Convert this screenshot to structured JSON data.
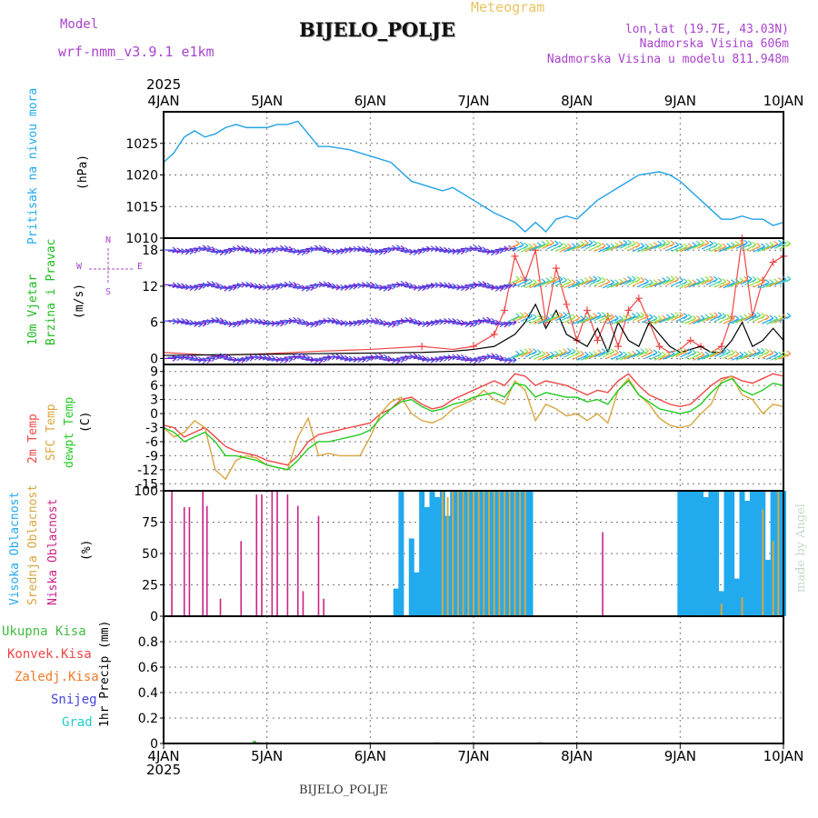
{
  "header": {
    "model_label": "Model",
    "model_name": "wrf-nmm_v3.9.1 e1km",
    "title": "BIJELO_POLJE",
    "subtitle": "Meteogram",
    "coords": "lon,lat (19.7E, 43.03N)",
    "elevation": "Nadmorska Visina 606m",
    "model_elevation": "Nadmorska Visina u modelu 811.948m"
  },
  "footer": {
    "station": "BIJELO_POLJE",
    "watermark": "made by Angel"
  },
  "colors": {
    "pressure": "#22a3e6",
    "t2m": "#f04646",
    "sfc": "#d8a640",
    "dewpt": "#22cc22",
    "purple": "#aa44cc",
    "magenta": "#cc2288",
    "cyan": "#22aaee",
    "orange": "#f07a28",
    "blue": "#4444dd",
    "teal": "#22cccc",
    "green": "#44bb44"
  },
  "chart_data": [
    {
      "type": "line",
      "panel": "pressure",
      "ylabel_lines": [
        "Pritisak na nivou mora",
        "(hPa)"
      ],
      "ylim": [
        1010,
        1030
      ],
      "yticks": [
        1010,
        1015,
        1020,
        1025
      ],
      "x_year": "2025",
      "x_ticks": [
        "4JAN",
        "5JAN",
        "6JAN",
        "7JAN",
        "8JAN",
        "9JAN",
        "10JAN"
      ],
      "series": [
        {
          "name": "Pritisak na nivou mora",
          "x": [
            0,
            0.1,
            0.2,
            0.3,
            0.4,
            0.5,
            0.6,
            0.7,
            0.8,
            0.9,
            1.0,
            1.1,
            1.2,
            1.3,
            1.5,
            1.6,
            1.8,
            2.0,
            2.2,
            2.4,
            2.6,
            2.7,
            2.8,
            3.0,
            3.2,
            3.4,
            3.5,
            3.6,
            3.7,
            3.8,
            3.9,
            4.0,
            4.2,
            4.4,
            4.6,
            4.8,
            4.9,
            5.0,
            5.2,
            5.4,
            5.5,
            5.6,
            5.7,
            5.8,
            5.9,
            6.0
          ],
          "y": [
            1022,
            1023.5,
            1026,
            1027,
            1026,
            1026.5,
            1027.5,
            1028,
            1027.5,
            1027.5,
            1027.5,
            1028,
            1028,
            1028.5,
            1024.5,
            1024.5,
            1024,
            1023,
            1022,
            1019,
            1018,
            1017.5,
            1018,
            1016,
            1014,
            1012.5,
            1011,
            1012.5,
            1011,
            1013,
            1013.5,
            1013,
            1016,
            1018,
            1020,
            1020.5,
            1020,
            1019,
            1016,
            1013,
            1013,
            1013.5,
            1013,
            1013,
            1012,
            1012.5
          ]
        }
      ]
    },
    {
      "type": "line",
      "panel": "wind",
      "ylabel_lines": [
        "10m Vjetar",
        "Brzina i Pravac",
        "(m/s)"
      ],
      "compass": [
        "N",
        "W",
        "E",
        "S"
      ],
      "ylim": [
        -1,
        20
      ],
      "yticks": [
        0,
        6,
        12,
        18
      ],
      "series": [
        {
          "name": "Brzina (speed)",
          "x": [
            0,
            0.5,
            1.0,
            1.5,
            2.0,
            2.5,
            2.8,
            3.0,
            3.2,
            3.4,
            3.5,
            3.6,
            3.7,
            3.8,
            3.9,
            4.0,
            4.1,
            4.2,
            4.3,
            4.4,
            4.5,
            4.6,
            4.7,
            4.8,
            4.9,
            5.0,
            5.1,
            5.2,
            5.3,
            5.4,
            5.5,
            5.6,
            5.7,
            5.8,
            5.9,
            6.0
          ],
          "y": [
            0.5,
            0.6,
            0.7,
            0.8,
            0.9,
            1.0,
            1.2,
            1.5,
            2,
            4,
            6,
            9,
            5,
            8,
            4,
            3,
            2,
            5,
            1,
            6,
            3,
            2,
            6,
            4,
            2,
            1,
            1.5,
            2,
            1,
            1,
            3,
            6,
            2,
            3,
            5,
            3
          ]
        },
        {
          "name": "Udari (gusts)",
          "x": [
            0,
            0.5,
            1.0,
            1.5,
            2.0,
            2.5,
            2.8,
            3.0,
            3.2,
            3.3,
            3.4,
            3.5,
            3.6,
            3.7,
            3.8,
            3.9,
            4.0,
            4.1,
            4.2,
            4.3,
            4.4,
            4.5,
            4.6,
            4.7,
            4.8,
            4.9,
            5.0,
            5.1,
            5.2,
            5.3,
            5.4,
            5.5,
            5.6,
            5.7,
            5.8,
            5.9,
            6.0
          ],
          "y": [
            1,
            0.5,
            0.8,
            1.2,
            1.5,
            2,
            1.5,
            2,
            4,
            8,
            17,
            13,
            18,
            6,
            15,
            9,
            3,
            8,
            3,
            7,
            2,
            8,
            10,
            6,
            2,
            1,
            1.5,
            3,
            2,
            1,
            2,
            7,
            20,
            7,
            13,
            16,
            17
          ]
        }
      ]
    },
    {
      "type": "line",
      "panel": "temperature",
      "ylabel_lines": [
        "2m Temp",
        "SFC Temp",
        "dewpt Temp",
        "(C)"
      ],
      "ylim": [
        -16.5,
        10.5
      ],
      "yticks": [
        -15,
        -12,
        -9,
        -6,
        -3,
        0,
        3,
        6,
        9
      ],
      "series": [
        {
          "name": "2m Temp",
          "x": [
            0,
            0.1,
            0.2,
            0.3,
            0.4,
            0.5,
            0.6,
            0.7,
            0.8,
            0.9,
            1.0,
            1.1,
            1.2,
            1.3,
            1.4,
            1.5,
            1.6,
            1.7,
            1.8,
            1.9,
            2.0,
            2.1,
            2.2,
            2.3,
            2.4,
            2.5,
            2.6,
            2.7,
            2.8,
            2.9,
            3.0,
            3.1,
            3.2,
            3.3,
            3.4,
            3.5,
            3.6,
            3.7,
            3.8,
            3.9,
            4.0,
            4.1,
            4.2,
            4.3,
            4.4,
            4.5,
            4.6,
            4.7,
            4.8,
            4.9,
            5.0,
            5.1,
            5.2,
            5.3,
            5.4,
            5.5,
            5.6,
            5.7,
            5.8,
            5.9,
            6.0
          ],
          "y": [
            -2.5,
            -3,
            -5,
            -4,
            -3,
            -5,
            -7,
            -8,
            -8.5,
            -9,
            -10,
            -10.5,
            -11,
            -9,
            -6,
            -4.5,
            -4,
            -3.5,
            -3,
            -2.5,
            -2,
            0,
            1,
            3,
            3.5,
            2,
            1,
            1.5,
            3,
            4,
            5,
            6,
            7,
            6,
            8.5,
            8,
            6,
            7,
            6.5,
            6,
            5,
            4,
            5,
            4.5,
            7,
            8.5,
            6,
            4,
            3,
            2,
            1.5,
            2,
            4,
            6,
            7.5,
            8,
            7,
            6.5,
            7.5,
            8.5,
            8
          ]
        },
        {
          "name": "SFC Temp",
          "x": [
            0,
            0.1,
            0.2,
            0.3,
            0.4,
            0.5,
            0.6,
            0.7,
            0.8,
            0.9,
            1.0,
            1.1,
            1.2,
            1.3,
            1.4,
            1.5,
            1.6,
            1.7,
            1.8,
            1.9,
            2.0,
            2.1,
            2.2,
            2.3,
            2.4,
            2.5,
            2.6,
            2.7,
            2.8,
            2.9,
            3.0,
            3.1,
            3.2,
            3.3,
            3.4,
            3.5,
            3.6,
            3.7,
            3.8,
            3.9,
            4.0,
            4.1,
            4.2,
            4.3,
            4.4,
            4.5,
            4.6,
            4.7,
            4.8,
            4.9,
            5.0,
            5.1,
            5.2,
            5.3,
            5.4,
            5.5,
            5.6,
            5.7,
            5.8,
            5.9,
            6.0
          ],
          "y": [
            -3,
            -5,
            -4,
            -1.5,
            -3,
            -12,
            -14,
            -10,
            -9,
            -9.5,
            -11,
            -11.5,
            -12,
            -5,
            -1,
            -9,
            -8.5,
            -9,
            -9,
            -9,
            -5,
            0,
            2.5,
            3.5,
            0,
            -1.5,
            -2,
            -1,
            1,
            2,
            3,
            5,
            3,
            2,
            7,
            5,
            -1.5,
            2,
            1,
            -0.5,
            0,
            -1.5,
            0,
            -2,
            5,
            7.5,
            4,
            2,
            -1,
            -2.5,
            -3,
            -2.5,
            0,
            2,
            7,
            8,
            4,
            3,
            0,
            2,
            1.5
          ]
        },
        {
          "name": "dewpt Temp",
          "x": [
            0,
            0.1,
            0.2,
            0.3,
            0.4,
            0.5,
            0.6,
            0.7,
            0.8,
            0.9,
            1.0,
            1.1,
            1.2,
            1.3,
            1.4,
            1.5,
            1.6,
            1.7,
            1.8,
            1.9,
            2.0,
            2.1,
            2.2,
            2.3,
            2.4,
            2.5,
            2.6,
            2.7,
            2.8,
            2.9,
            3.0,
            3.1,
            3.2,
            3.3,
            3.4,
            3.5,
            3.6,
            3.7,
            3.8,
            3.9,
            4.0,
            4.1,
            4.2,
            4.3,
            4.4,
            4.5,
            4.6,
            4.7,
            4.8,
            4.9,
            5.0,
            5.1,
            5.2,
            5.3,
            5.4,
            5.5,
            5.6,
            5.7,
            5.8,
            5.9,
            6.0
          ],
          "y": [
            -3,
            -4,
            -6,
            -5,
            -4,
            -6,
            -9,
            -9,
            -9.5,
            -10,
            -11,
            -11.5,
            -12,
            -10,
            -7.5,
            -6,
            -6,
            -5.5,
            -5,
            -4.5,
            -3.5,
            -1,
            1,
            2.5,
            3,
            1.5,
            0.5,
            1,
            2,
            2.5,
            3.5,
            4,
            4.5,
            3.5,
            6.5,
            6,
            3.5,
            4.5,
            4,
            3.5,
            3.5,
            2.5,
            3,
            2,
            5,
            7,
            4,
            2.5,
            1,
            0.5,
            0,
            0.5,
            2,
            4.5,
            6.5,
            7.5,
            5,
            4,
            5,
            6.5,
            6
          ]
        }
      ]
    },
    {
      "type": "bar",
      "panel": "clouds",
      "ylabel_lines": [
        "Visoka Oblacnost",
        "Srednja Oblacnost",
        "Niska Oblacnost",
        "(%)"
      ],
      "ylim": [
        0,
        100
      ],
      "yticks": [
        0,
        25,
        50,
        75,
        100
      ],
      "series": [
        {
          "name": "Visoka Oblacnost",
          "x": [
            2.25,
            2.3,
            2.4,
            2.45,
            2.5,
            2.55,
            2.6,
            2.65,
            2.7,
            2.75,
            2.8,
            2.85,
            2.9,
            2.95,
            3.0,
            3.05,
            3.1,
            3.15,
            3.2,
            3.25,
            3.3,
            3.35,
            3.4,
            3.45,
            3.5,
            3.55,
            5.0,
            5.05,
            5.1,
            5.15,
            5.2,
            5.25,
            5.3,
            5.35,
            5.4,
            5.45,
            5.5,
            5.55,
            5.6,
            5.65,
            5.7,
            5.75,
            5.8,
            5.85,
            5.9,
            5.95,
            6.0
          ],
          "values": [
            22,
            100,
            62,
            35,
            100,
            87,
            100,
            95,
            100,
            80,
            100,
            100,
            100,
            100,
            100,
            100,
            100,
            100,
            100,
            100,
            100,
            100,
            100,
            100,
            100,
            100,
            100,
            100,
            100,
            100,
            100,
            95,
            100,
            100,
            20,
            100,
            100,
            30,
            100,
            92,
            100,
            100,
            100,
            45,
            100,
            100,
            100
          ]
        },
        {
          "name": "Srednja Oblacnost",
          "x": [
            2.7,
            2.75,
            2.8,
            2.85,
            2.9,
            2.95,
            3.0,
            3.05,
            3.1,
            3.15,
            3.2,
            3.25,
            3.3,
            3.35,
            3.4,
            3.45,
            3.5,
            5.4,
            5.6,
            5.8,
            5.9,
            5.95
          ],
          "values": [
            100,
            95,
            100,
            100,
            100,
            100,
            100,
            100,
            100,
            100,
            100,
            100,
            100,
            100,
            100,
            100,
            100,
            10,
            15,
            85,
            60,
            100
          ]
        },
        {
          "name": "Niska Oblacnost",
          "x": [
            0.08,
            0.2,
            0.25,
            0.38,
            0.42,
            0.55,
            0.75,
            0.9,
            0.95,
            1.05,
            1.1,
            1.2,
            1.3,
            1.35,
            1.5,
            1.55,
            4.25
          ],
          "values": [
            100,
            87,
            87,
            100,
            88,
            14,
            60,
            97,
            97,
            100,
            100,
            97,
            88,
            20,
            80,
            14,
            67
          ]
        }
      ]
    },
    {
      "type": "bar",
      "panel": "precipitation",
      "ylabel_lines": [
        "1hr Precip (mm)"
      ],
      "legend": [
        "Ukupna Kisa",
        "Konvek.Kisa",
        "Zaledj.Kisa",
        "Snijeg",
        "Grad"
      ],
      "ylim": [
        0,
        1.0
      ],
      "yticks": [
        0,
        0.2,
        0.4,
        0.6,
        0.8
      ],
      "series": [
        {
          "name": "Ukupna Kisa",
          "x": [
            0.88,
            0.92,
            2.65,
            3.65
          ],
          "values": [
            0.02,
            0.01,
            0.01,
            0.01
          ]
        }
      ]
    }
  ]
}
